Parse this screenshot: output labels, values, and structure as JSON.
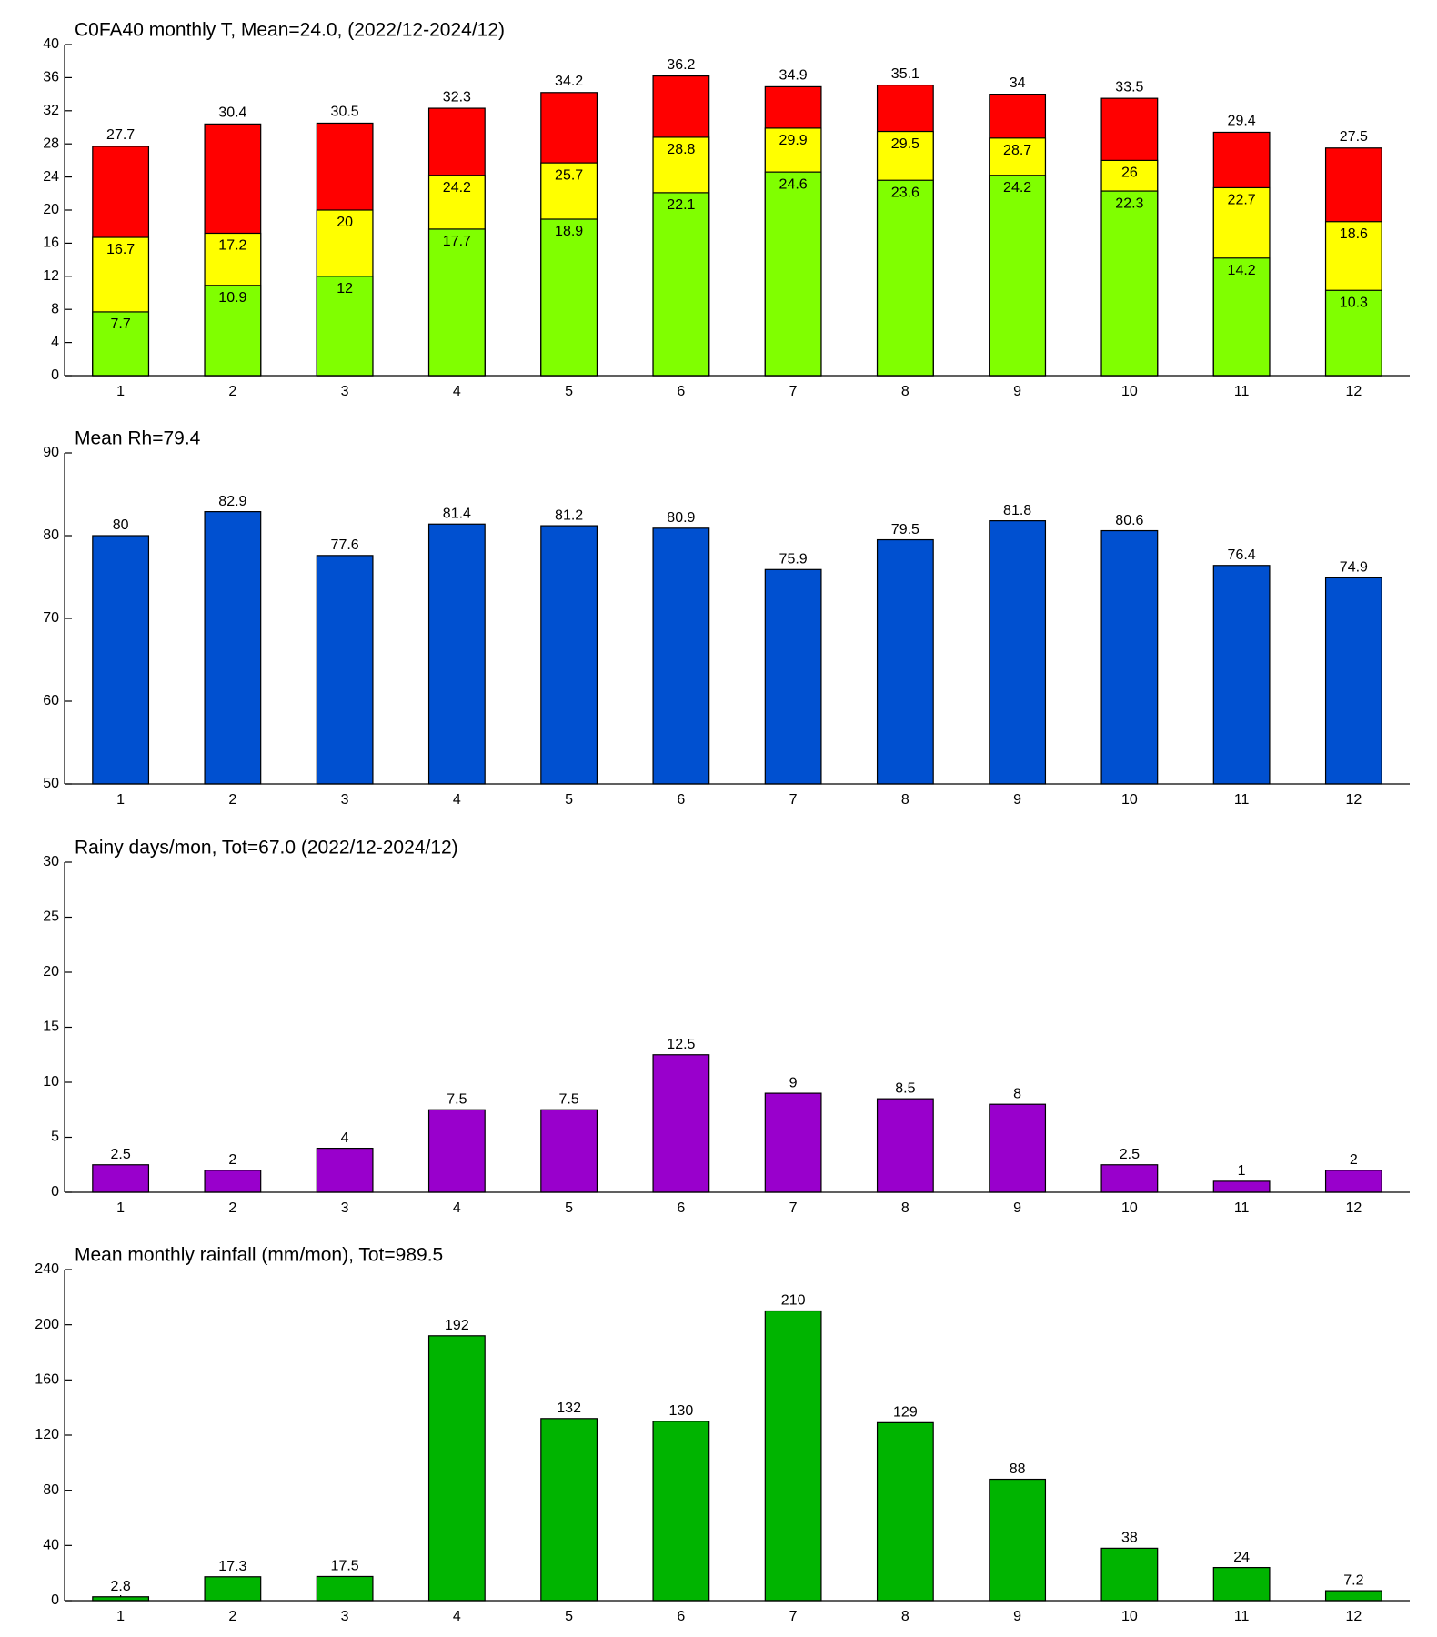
{
  "chart_data": [
    {
      "type": "bar",
      "title": "C0FA40 monthly T, Mean=24.0, (2022/12-2024/12)",
      "categories": [
        "1",
        "2",
        "3",
        "4",
        "5",
        "6",
        "7",
        "8",
        "9",
        "10",
        "11",
        "12"
      ],
      "overlap": true,
      "series": [
        {
          "color": "#ff0000",
          "values": [
            27.7,
            30.4,
            30.5,
            32.3,
            34.2,
            36.2,
            34.9,
            35.1,
            34,
            33.5,
            29.4,
            27.5
          ]
        },
        {
          "color": "#ffff00",
          "values": [
            16.7,
            17.2,
            20,
            24.2,
            25.7,
            28.8,
            29.9,
            29.5,
            28.7,
            26,
            22.7,
            18.6
          ]
        },
        {
          "color": "#80ff00",
          "values": [
            7.7,
            10.9,
            12,
            17.7,
            18.9,
            22.1,
            24.6,
            23.6,
            24.2,
            22.3,
            14.2,
            10.3
          ]
        }
      ],
      "ylim": [
        0,
        40
      ],
      "yticks": [
        0,
        4,
        8,
        12,
        16,
        20,
        24,
        28,
        32,
        36,
        40
      ]
    },
    {
      "type": "bar",
      "title": "Mean Rh=79.4",
      "categories": [
        "1",
        "2",
        "3",
        "4",
        "5",
        "6",
        "7",
        "8",
        "9",
        "10",
        "11",
        "12"
      ],
      "values": [
        80,
        82.9,
        77.6,
        81.4,
        81.2,
        80.9,
        75.9,
        79.5,
        81.8,
        80.6,
        76.4,
        74.9
      ],
      "color": "#0050d0",
      "ylim": [
        50,
        90
      ],
      "yticks": [
        50,
        60,
        70,
        80,
        90
      ]
    },
    {
      "type": "bar",
      "title": "Rainy days/mon, Tot=67.0 (2022/12-2024/12)",
      "categories": [
        "1",
        "2",
        "3",
        "4",
        "5",
        "6",
        "7",
        "8",
        "9",
        "10",
        "11",
        "12"
      ],
      "values": [
        2.5,
        2,
        4,
        7.5,
        7.5,
        12.5,
        9,
        8.5,
        8,
        2.5,
        1,
        2
      ],
      "color": "#9900cc",
      "ylim": [
        0,
        30
      ],
      "yticks": [
        0,
        5,
        10,
        15,
        20,
        25,
        30
      ]
    },
    {
      "type": "bar",
      "title": "Mean monthly rainfall (mm/mon), Tot=989.5",
      "categories": [
        "1",
        "2",
        "3",
        "4",
        "5",
        "6",
        "7",
        "8",
        "9",
        "10",
        "11",
        "12"
      ],
      "values": [
        2.8,
        17.3,
        17.5,
        192,
        132,
        130,
        210,
        129,
        88,
        38,
        24,
        7.2
      ],
      "color": "#00b400",
      "ylim": [
        0,
        240
      ],
      "yticks": [
        0,
        40,
        80,
        120,
        160,
        200,
        240
      ]
    }
  ]
}
